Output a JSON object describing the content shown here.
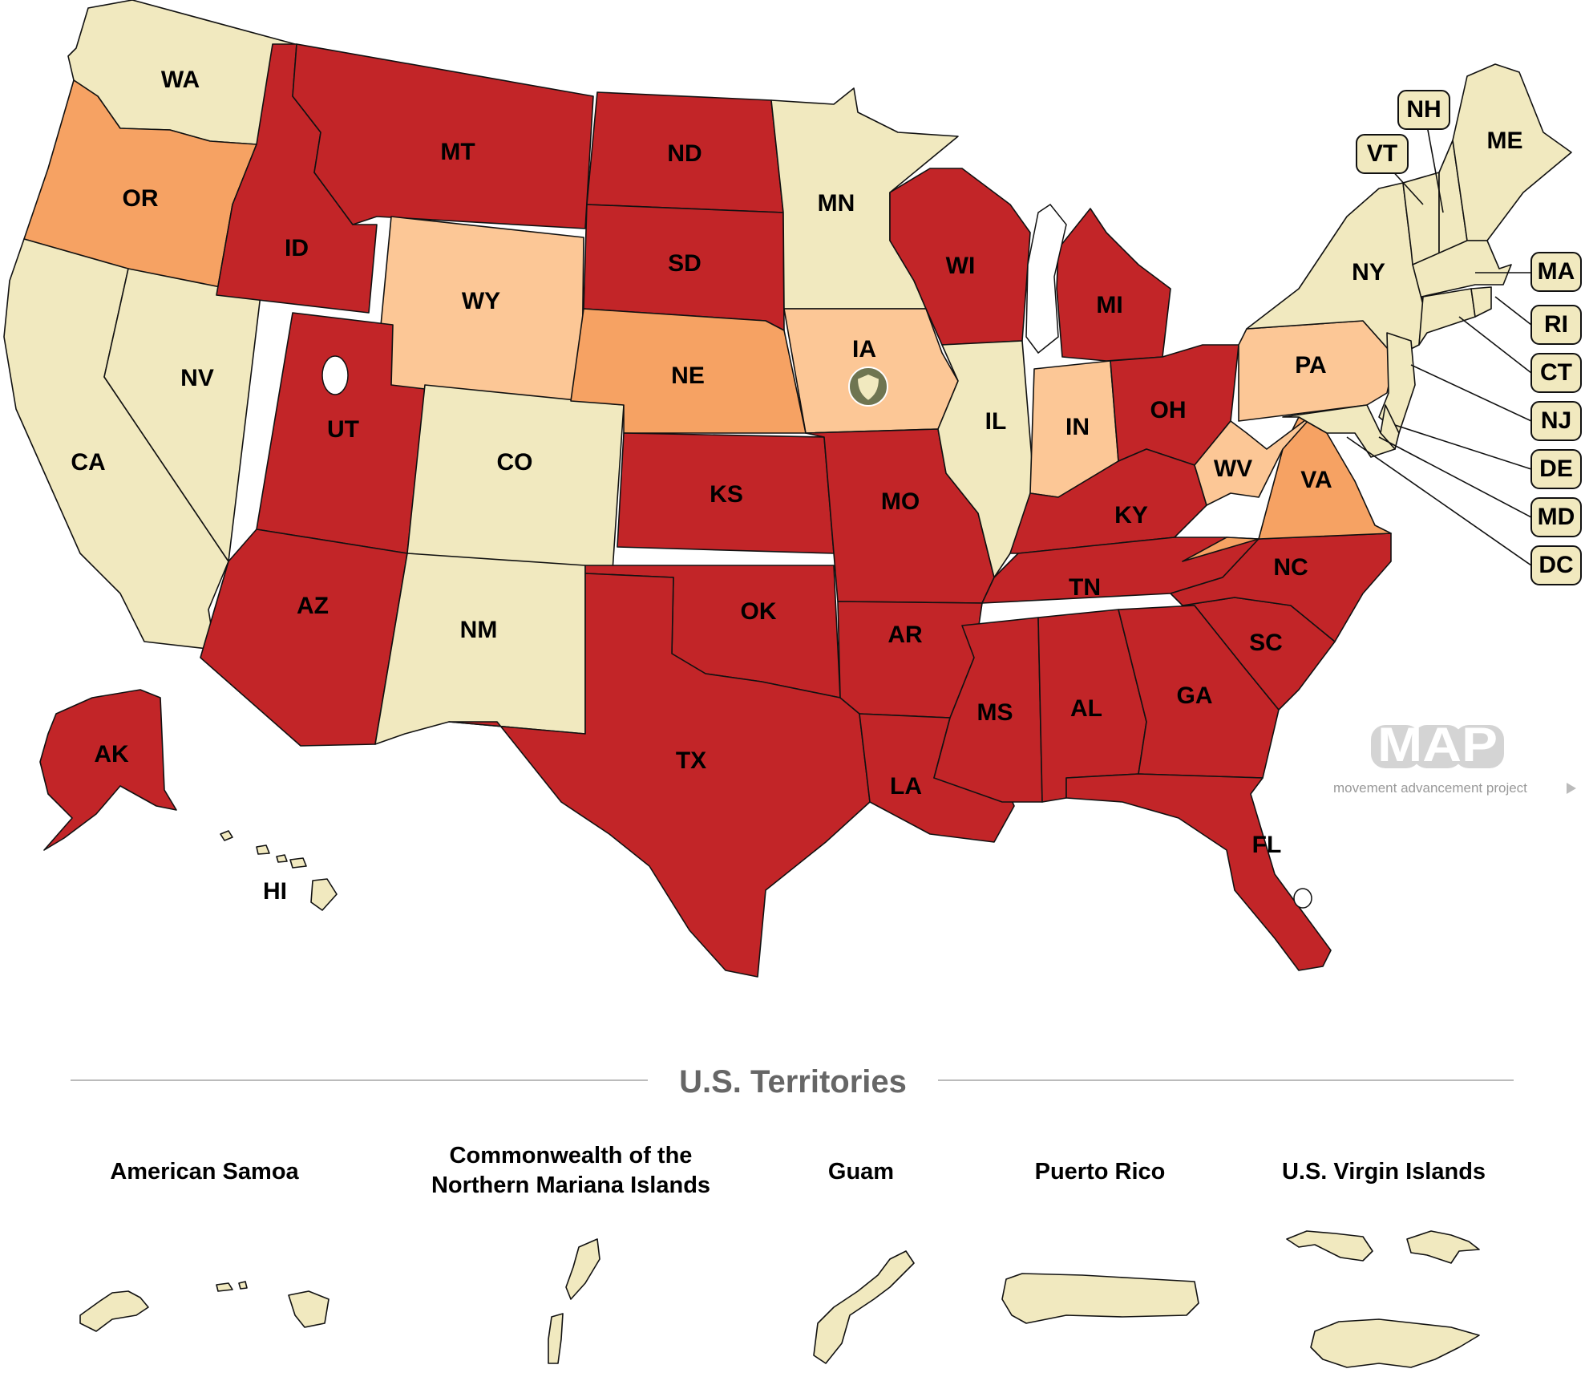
{
  "colors": {
    "restrictive": "#c22528",
    "medium": "#f6a263",
    "low": "#fcc796",
    "none": "#f1e9bf",
    "shield": "#6f7551"
  },
  "states": {
    "WA": "WA",
    "OR": "OR",
    "CA": "CA",
    "NV": "NV",
    "ID": "ID",
    "MT": "MT",
    "WY": "WY",
    "UT": "UT",
    "AZ": "AZ",
    "CO": "CO",
    "NM": "NM",
    "ND": "ND",
    "SD": "SD",
    "NE": "NE",
    "KS": "KS",
    "OK": "OK",
    "TX": "TX",
    "MN": "MN",
    "IA": "IA",
    "MO": "MO",
    "AR": "AR",
    "LA": "LA",
    "WI": "WI",
    "IL": "IL",
    "MI": "MI",
    "IN": "IN",
    "OH": "OH",
    "KY": "KY",
    "TN": "TN",
    "MS": "MS",
    "AL": "AL",
    "GA": "GA",
    "FL": "FL",
    "SC": "SC",
    "NC": "NC",
    "VA": "VA",
    "WV": "WV",
    "PA": "PA",
    "NY": "NY",
    "ME": "ME",
    "AK": "AK",
    "HI": "HI"
  },
  "callouts": {
    "NH": "NH",
    "VT": "VT",
    "MA": "MA",
    "RI": "RI",
    "CT": "CT",
    "NJ": "NJ",
    "DE": "DE",
    "MD": "MD",
    "DC": "DC"
  },
  "logo": {
    "letters": "MAP",
    "tagline": "movement advancement project"
  },
  "territories": {
    "section_title": "U.S. Territories",
    "american_samoa": "American Samoa",
    "cnmi_line1": "Commonwealth of the",
    "cnmi_line2": "Northern Mariana Islands",
    "guam": "Guam",
    "puerto_rico": "Puerto Rico",
    "usvi": "U.S. Virgin Islands"
  }
}
